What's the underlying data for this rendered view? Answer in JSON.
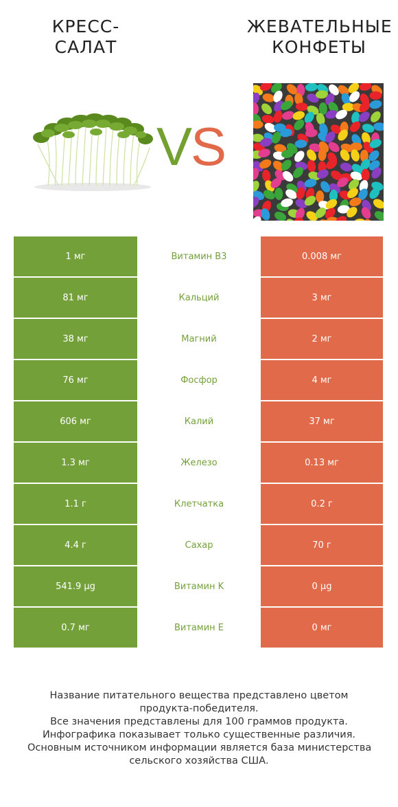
{
  "header": {
    "left_title": [
      "КРЕСС-",
      "САЛАТ"
    ],
    "right_title": [
      "ЖЕВАТЕЛЬНЫЕ",
      "КОНФЕТЫ"
    ],
    "vs_v": "V",
    "vs_s": "S"
  },
  "colors": {
    "left_winner": "#74a03a",
    "right_winner": "#e06a4a"
  },
  "rows": [
    {
      "left": "1 мг",
      "name": "Витамин B3",
      "right": "0.008 мг"
    },
    {
      "left": "81 мг",
      "name": "Кальций",
      "right": "3 мг"
    },
    {
      "left": "38 мг",
      "name": "Магний",
      "right": "2 мг"
    },
    {
      "left": "76 мг",
      "name": "Фосфор",
      "right": "4 мг"
    },
    {
      "left": "606 мг",
      "name": "Калий",
      "right": "37 мг"
    },
    {
      "left": "1.3 мг",
      "name": "Железо",
      "right": "0.13 мг"
    },
    {
      "left": "1.1 г",
      "name": "Клетчатка",
      "right": "0.2 г"
    },
    {
      "left": "4.4 г",
      "name": "Сахар",
      "right": "70 г"
    },
    {
      "left": "541.9 µg",
      "name": "Витамин K",
      "right": "0 µg"
    },
    {
      "left": "0.7 мг",
      "name": "Витамин E",
      "right": "0 мг"
    }
  ],
  "footer": [
    "Название питательного вещества представлено цветом",
    "продукта-победителя.",
    "Все значения представлены для 100 граммов продукта.",
    "Инфографика показывает только существенные различия.",
    "Основным источником информации является база министерства",
    "сельского хозяйства США."
  ]
}
